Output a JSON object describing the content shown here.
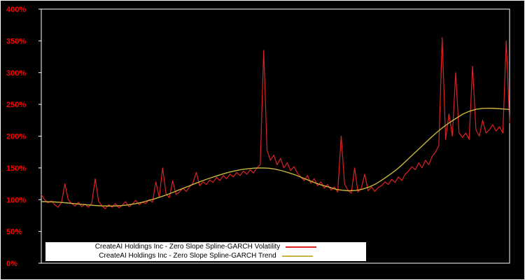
{
  "colors": {
    "background": "#000000",
    "frame": "#ffffff",
    "axis_label": "#ff0000",
    "volatility_line": "#dd2222",
    "trend_line": "#c8b63e"
  },
  "y_axis": {
    "tick_labels": [
      "0%",
      "50%",
      "100%",
      "150%",
      "200%",
      "250%",
      "300%",
      "350%",
      "400%"
    ],
    "min": 0,
    "max": 400,
    "step": 50
  },
  "legend": {
    "items": [
      {
        "label": "CreateAI Holdings Inc - Zero Slope Spline-GARCH Volatility",
        "color": "#dd2222"
      },
      {
        "label": "CreateAI Holdings Inc - Zero Slope Spline-GARCH Trend",
        "color": "#c8b63e"
      }
    ]
  },
  "chart_data": {
    "type": "line",
    "title": "",
    "xlabel": "",
    "ylabel": "",
    "ylim": [
      0,
      400
    ],
    "y_tick_format": "percent",
    "x_axis": "time index (no labels shown), normalized 0-1 by sample position",
    "grid": false,
    "legend_position": "bottom-center inside plot, white box",
    "series": [
      {
        "name": "CreateAI Holdings Inc - Zero Slope Spline-GARCH Volatility",
        "color": "#dd2222",
        "x": "index/(n-1)",
        "values": [
          108,
          100,
          95,
          98,
          92,
          88,
          96,
          125,
          100,
          94,
          90,
          96,
          89,
          93,
          88,
          95,
          133,
          98,
          90,
          86,
          92,
          88,
          94,
          87,
          91,
          97,
          89,
          93,
          99,
          92,
          96,
          94,
          100,
          96,
          128,
          104,
          150,
          110,
          103,
          130,
          108,
          112,
          118,
          113,
          120,
          126,
          143,
          122,
          128,
          124,
          131,
          127,
          135,
          130,
          138,
          133,
          140,
          136,
          143,
          138,
          145,
          140,
          147,
          142,
          150,
          155,
          335,
          178,
          162,
          170,
          155,
          165,
          150,
          158,
          146,
          152,
          142,
          136,
          130,
          138,
          126,
          133,
          122,
          128,
          118,
          124,
          115,
          120,
          112,
          200,
          125,
          115,
          110,
          150,
          112,
          118,
          140,
          114,
          120,
          113,
          119,
          122,
          128,
          124,
          132,
          127,
          136,
          130,
          140,
          145,
          152,
          147,
          158,
          150,
          162,
          155,
          168,
          175,
          185,
          355,
          195,
          235,
          200,
          300,
          205,
          198,
          205,
          195,
          310,
          210,
          200,
          225,
          205,
          210,
          218,
          208,
          215,
          205,
          350,
          220
        ]
      },
      {
        "name": "CreateAI Holdings Inc - Zero Slope Spline-GARCH Trend",
        "color": "#c8b63e",
        "x": "index/(n-1)",
        "values": [
          97.0,
          96.8,
          96.4,
          95.7,
          94.8,
          93.8,
          92.7,
          91.8,
          90.9,
          90.3,
          90.0,
          90.1,
          90.7,
          91.8,
          93.6,
          95.7,
          98.6,
          101.6,
          105.0,
          108.6,
          112.8,
          117.0,
          121.2,
          125.4,
          129.5,
          133.2,
          136.8,
          140.1,
          143.0,
          145.6,
          147.5,
          148.9,
          149.8,
          150.0,
          149.5,
          148.0,
          145.5,
          142.4,
          138.8,
          134.6,
          130.4,
          126.2,
          122.6,
          119.8,
          116.5,
          114.8,
          114.1,
          114.5,
          116.5,
          120.0,
          124.9,
          131.5,
          138.7,
          146.5,
          155.6,
          165.6,
          175.5,
          185.5,
          195.4,
          205.0,
          213.5,
          221.3,
          228.0,
          234.7,
          239.2,
          242.3,
          243.8,
          244.0,
          243.5,
          242.8,
          242.0
        ]
      }
    ]
  }
}
